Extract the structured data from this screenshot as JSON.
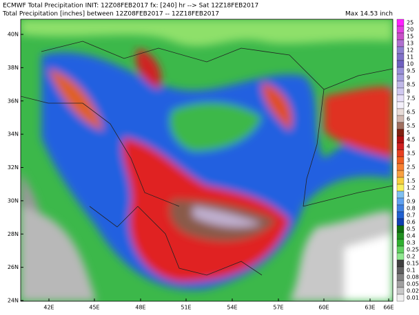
{
  "header": {
    "line1": "ECMWF Total Precipitation INIT: 12Z08FEB2017 fx: [240] hr --> Sat 12Z18FEB2017",
    "line2": "Total Precipitation [inches] between 12Z08FEB2017 -- 12Z18FEB2017",
    "max": "Max 14.53 inch"
  },
  "map": {
    "lat_labels": [
      "40N",
      "38N",
      "36N",
      "34N",
      "32N",
      "30N",
      "28N",
      "26N",
      "24N"
    ],
    "lon_labels": [
      "42E",
      "45E",
      "48E",
      "51E",
      "54E",
      "57E",
      "60E",
      "63E",
      "66E"
    ]
  },
  "colorbar": {
    "labels": [
      "25",
      "20",
      "15",
      "13",
      "12",
      "11",
      "10",
      "9.5",
      "9",
      "8.5",
      "8",
      "7.5",
      "7",
      "6.5",
      "6",
      "5.5",
      "5",
      "4.5",
      "4",
      "3.5",
      "3",
      "2.5",
      "2",
      "1.5",
      "1.2",
      "1",
      "0.9",
      "0.8",
      "0.7",
      "0.6",
      "0.5",
      "0.4",
      "0.3",
      "0.25",
      "0.2",
      "0.15",
      "0.1",
      "0.08",
      "0.05",
      "0.02",
      "0.01"
    ]
  }
}
